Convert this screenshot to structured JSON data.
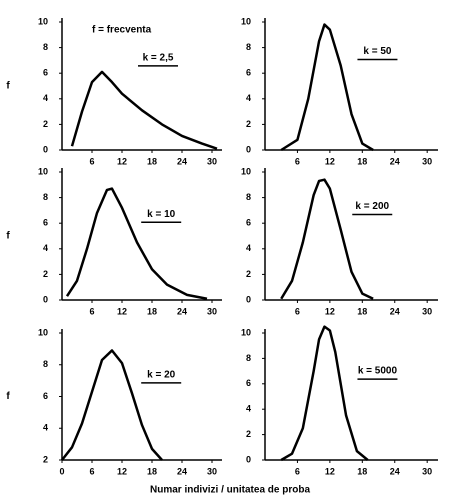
{
  "xlabel": "Numar indivizi / unitatea de proba",
  "chart_data": [
    {
      "type": "line",
      "ylabel": "f",
      "annotations": [
        "f = frecventa",
        "k = 2,5"
      ],
      "xlim": [
        0,
        32
      ],
      "ylim": [
        0,
        10
      ],
      "xticks": [
        6,
        12,
        18,
        24,
        30
      ],
      "yticks": [
        0,
        2,
        4,
        6,
        8,
        10
      ],
      "x": [
        2,
        4,
        6,
        8,
        10,
        12,
        16,
        20,
        24,
        28,
        31
      ],
      "series": [
        {
          "color": "#000000",
          "values": [
            0.3,
            3,
            5.3,
            6.1,
            5.3,
            4.4,
            3.1,
            2.0,
            1.1,
            0.5,
            0.1
          ]
        }
      ]
    },
    {
      "type": "line",
      "annotations": [
        "k = 50"
      ],
      "xlim": [
        0,
        32
      ],
      "ylim": [
        0,
        10
      ],
      "xticks": [
        6,
        12,
        18,
        24,
        30
      ],
      "yticks": [
        0,
        2,
        4,
        6,
        8,
        10
      ],
      "x": [
        3,
        6,
        8,
        10,
        11,
        12,
        14,
        16,
        18,
        20
      ],
      "series": [
        {
          "color": "#000000",
          "values": [
            0,
            0.8,
            4,
            8.5,
            9.8,
            9.4,
            6.6,
            2.8,
            0.5,
            0
          ]
        }
      ]
    },
    {
      "type": "line",
      "ylabel": "f",
      "annotations": [
        "k = 10"
      ],
      "xlim": [
        0,
        32
      ],
      "ylim": [
        0,
        10
      ],
      "xticks": [
        6,
        12,
        18,
        24,
        30
      ],
      "yticks": [
        0,
        2,
        4,
        6,
        8,
        10
      ],
      "x": [
        1,
        3,
        5,
        7,
        9,
        10,
        12,
        15,
        18,
        21,
        25,
        29
      ],
      "series": [
        {
          "color": "#000000",
          "values": [
            0.3,
            1.5,
            4,
            6.8,
            8.6,
            8.7,
            7.2,
            4.5,
            2.4,
            1.2,
            0.4,
            0.1
          ]
        }
      ]
    },
    {
      "type": "line",
      "annotations": [
        "k = 200"
      ],
      "xlim": [
        0,
        32
      ],
      "ylim": [
        0,
        10
      ],
      "xticks": [
        6,
        12,
        18,
        24,
        30
      ],
      "yticks": [
        0,
        2,
        4,
        6,
        8,
        10
      ],
      "x": [
        3,
        5,
        7,
        9,
        10,
        11,
        12,
        14,
        16,
        18,
        20
      ],
      "series": [
        {
          "color": "#000000",
          "values": [
            0.1,
            1.5,
            4.5,
            8.2,
            9.3,
            9.4,
            8.7,
            5.5,
            2.2,
            0.5,
            0.1
          ]
        }
      ]
    },
    {
      "type": "line",
      "ylabel": "f",
      "annotations": [
        "k = 20"
      ],
      "xlim": [
        0,
        32
      ],
      "ylim": [
        2,
        10
      ],
      "xticks": [
        0,
        6,
        12,
        18,
        24,
        30
      ],
      "yticks": [
        2,
        4,
        6,
        8,
        10
      ],
      "x": [
        0,
        2,
        4,
        6,
        8,
        10,
        12,
        14,
        16,
        18,
        20
      ],
      "series": [
        {
          "color": "#000000",
          "values": [
            2,
            2.8,
            4.3,
            6.3,
            8.3,
            8.9,
            8.1,
            6.2,
            4.2,
            2.7,
            2.0
          ]
        }
      ]
    },
    {
      "type": "line",
      "annotations": [
        "k = 5000"
      ],
      "xlim": [
        0,
        32
      ],
      "ylim": [
        0,
        10
      ],
      "xticks": [
        6,
        12,
        18,
        24,
        30
      ],
      "yticks": [
        0,
        2,
        4,
        6,
        8,
        10
      ],
      "x": [
        3,
        5,
        7,
        9,
        10,
        11,
        12,
        13,
        15,
        17,
        19
      ],
      "series": [
        {
          "color": "#000000",
          "values": [
            0,
            0.5,
            2.5,
            7,
            9.5,
            10.5,
            10.2,
            8.5,
            3.5,
            0.7,
            0
          ]
        }
      ]
    }
  ]
}
